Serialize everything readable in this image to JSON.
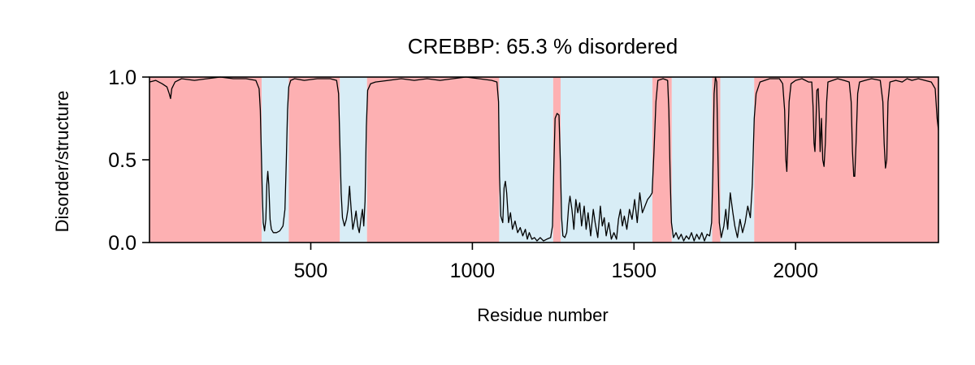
{
  "chart_data": {
    "type": "line",
    "title": "CREBBP: 65.3 % disordered",
    "xlabel": "Residue number",
    "ylabel": "Disorder/structure",
    "xlim": [
      1,
      2442
    ],
    "ylim": [
      0,
      1
    ],
    "xticks": [
      500,
      1000,
      1500,
      2000
    ],
    "xtick_labels": [
      "500",
      "1000",
      "1500",
      "2000"
    ],
    "yticks": [
      0,
      0.5,
      1
    ],
    "ytick_labels": [
      "0.0",
      "0.5",
      "1.0"
    ],
    "grid": false,
    "legend": "none",
    "colors": {
      "disordered": "#fdb0b2",
      "structured": "#d8edf6",
      "line": "#000000"
    },
    "regions": [
      {
        "start": 1,
        "end": 348,
        "state": "disordered"
      },
      {
        "start": 348,
        "end": 432,
        "state": "structured"
      },
      {
        "start": 432,
        "end": 590,
        "state": "disordered"
      },
      {
        "start": 590,
        "end": 674,
        "state": "structured"
      },
      {
        "start": 674,
        "end": 1083,
        "state": "disordered"
      },
      {
        "start": 1083,
        "end": 1250,
        "state": "structured"
      },
      {
        "start": 1250,
        "end": 1273,
        "state": "disordered"
      },
      {
        "start": 1273,
        "end": 1557,
        "state": "structured"
      },
      {
        "start": 1557,
        "end": 1617,
        "state": "disordered"
      },
      {
        "start": 1617,
        "end": 1742,
        "state": "structured"
      },
      {
        "start": 1742,
        "end": 1767,
        "state": "disordered"
      },
      {
        "start": 1767,
        "end": 1872,
        "state": "structured"
      },
      {
        "start": 1872,
        "end": 2442,
        "state": "disordered"
      }
    ],
    "series": [
      {
        "values": [
          [
            1,
            0.97
          ],
          [
            20,
            0.98
          ],
          [
            40,
            0.96
          ],
          [
            55,
            0.94
          ],
          [
            62,
            0.9
          ],
          [
            66,
            0.87
          ],
          [
            70,
            0.93
          ],
          [
            80,
            0.97
          ],
          [
            100,
            0.99
          ],
          [
            140,
            0.98
          ],
          [
            180,
            0.99
          ],
          [
            220,
            1.0
          ],
          [
            260,
            0.99
          ],
          [
            300,
            0.99
          ],
          [
            330,
            0.98
          ],
          [
            340,
            0.93
          ],
          [
            344,
            0.8
          ],
          [
            347,
            0.55
          ],
          [
            350,
            0.3
          ],
          [
            353,
            0.12
          ],
          [
            357,
            0.07
          ],
          [
            361,
            0.14
          ],
          [
            364,
            0.35
          ],
          [
            367,
            0.43
          ],
          [
            370,
            0.35
          ],
          [
            374,
            0.14
          ],
          [
            378,
            0.08
          ],
          [
            384,
            0.06
          ],
          [
            394,
            0.06
          ],
          [
            404,
            0.07
          ],
          [
            414,
            0.1
          ],
          [
            420,
            0.2
          ],
          [
            424,
            0.48
          ],
          [
            428,
            0.8
          ],
          [
            432,
            0.94
          ],
          [
            438,
            0.98
          ],
          [
            450,
            0.99
          ],
          [
            480,
            0.98
          ],
          [
            520,
            0.99
          ],
          [
            560,
            0.99
          ],
          [
            580,
            0.98
          ],
          [
            586,
            0.9
          ],
          [
            590,
            0.6
          ],
          [
            594,
            0.3
          ],
          [
            598,
            0.15
          ],
          [
            604,
            0.1
          ],
          [
            610,
            0.14
          ],
          [
            615,
            0.2
          ],
          [
            620,
            0.34
          ],
          [
            625,
            0.2
          ],
          [
            630,
            0.08
          ],
          [
            636,
            0.14
          ],
          [
            640,
            0.19
          ],
          [
            645,
            0.1
          ],
          [
            650,
            0.06
          ],
          [
            655,
            0.14
          ],
          [
            660,
            0.2
          ],
          [
            664,
            0.1
          ],
          [
            668,
            0.25
          ],
          [
            672,
            0.7
          ],
          [
            676,
            0.92
          ],
          [
            685,
            0.96
          ],
          [
            700,
            0.97
          ],
          [
            740,
            0.98
          ],
          [
            780,
            0.99
          ],
          [
            820,
            0.98
          ],
          [
            860,
            0.99
          ],
          [
            900,
            0.98
          ],
          [
            940,
            0.99
          ],
          [
            980,
            1.0
          ],
          [
            1020,
            0.99
          ],
          [
            1060,
            0.98
          ],
          [
            1076,
            0.97
          ],
          [
            1081,
            0.85
          ],
          [
            1084,
            0.4
          ],
          [
            1088,
            0.16
          ],
          [
            1094,
            0.12
          ],
          [
            1098,
            0.33
          ],
          [
            1102,
            0.37
          ],
          [
            1106,
            0.3
          ],
          [
            1112,
            0.12
          ],
          [
            1118,
            0.18
          ],
          [
            1124,
            0.08
          ],
          [
            1132,
            0.13
          ],
          [
            1140,
            0.06
          ],
          [
            1148,
            0.09
          ],
          [
            1156,
            0.04
          ],
          [
            1164,
            0.08
          ],
          [
            1170,
            0.02
          ],
          [
            1176,
            0.06
          ],
          [
            1184,
            0.02
          ],
          [
            1192,
            0.03
          ],
          [
            1200,
            0.01
          ],
          [
            1210,
            0.03
          ],
          [
            1220,
            0.01
          ],
          [
            1230,
            0.02
          ],
          [
            1242,
            0.03
          ],
          [
            1248,
            0.1
          ],
          [
            1252,
            0.45
          ],
          [
            1256,
            0.75
          ],
          [
            1262,
            0.78
          ],
          [
            1268,
            0.77
          ],
          [
            1272,
            0.5
          ],
          [
            1276,
            0.15
          ],
          [
            1280,
            0.04
          ],
          [
            1286,
            0.03
          ],
          [
            1292,
            0.06
          ],
          [
            1298,
            0.22
          ],
          [
            1302,
            0.28
          ],
          [
            1308,
            0.2
          ],
          [
            1314,
            0.08
          ],
          [
            1320,
            0.26
          ],
          [
            1326,
            0.18
          ],
          [
            1332,
            0.24
          ],
          [
            1338,
            0.1
          ],
          [
            1346,
            0.22
          ],
          [
            1352,
            0.08
          ],
          [
            1358,
            0.18
          ],
          [
            1366,
            0.04
          ],
          [
            1374,
            0.2
          ],
          [
            1380,
            0.12
          ],
          [
            1388,
            0.03
          ],
          [
            1396,
            0.22
          ],
          [
            1402,
            0.1
          ],
          [
            1408,
            0.15
          ],
          [
            1414,
            0.04
          ],
          [
            1422,
            0.12
          ],
          [
            1430,
            0.02
          ],
          [
            1438,
            0.06
          ],
          [
            1446,
            0.02
          ],
          [
            1452,
            0.14
          ],
          [
            1458,
            0.2
          ],
          [
            1464,
            0.1
          ],
          [
            1470,
            0.16
          ],
          [
            1478,
            0.08
          ],
          [
            1486,
            0.2
          ],
          [
            1494,
            0.14
          ],
          [
            1502,
            0.26
          ],
          [
            1510,
            0.12
          ],
          [
            1518,
            0.3
          ],
          [
            1526,
            0.18
          ],
          [
            1534,
            0.22
          ],
          [
            1542,
            0.26
          ],
          [
            1550,
            0.28
          ],
          [
            1556,
            0.3
          ],
          [
            1562,
            0.55
          ],
          [
            1568,
            0.85
          ],
          [
            1574,
            0.98
          ],
          [
            1590,
            0.99
          ],
          [
            1604,
            0.98
          ],
          [
            1608,
            0.8
          ],
          [
            1612,
            0.4
          ],
          [
            1616,
            0.12
          ],
          [
            1622,
            0.03
          ],
          [
            1630,
            0.06
          ],
          [
            1638,
            0.02
          ],
          [
            1646,
            0.05
          ],
          [
            1654,
            0.01
          ],
          [
            1662,
            0.04
          ],
          [
            1670,
            0.02
          ],
          [
            1678,
            0.06
          ],
          [
            1686,
            0.01
          ],
          [
            1694,
            0.05
          ],
          [
            1702,
            0.02
          ],
          [
            1710,
            0.06
          ],
          [
            1718,
            0.01
          ],
          [
            1726,
            0.05
          ],
          [
            1734,
            0.04
          ],
          [
            1740,
            0.12
          ],
          [
            1744,
            0.4
          ],
          [
            1748,
            0.9
          ],
          [
            1752,
            1.0
          ],
          [
            1756,
            0.97
          ],
          [
            1760,
            0.5
          ],
          [
            1764,
            0.12
          ],
          [
            1770,
            0.03
          ],
          [
            1778,
            0.1
          ],
          [
            1784,
            0.2
          ],
          [
            1790,
            0.08
          ],
          [
            1798,
            0.3
          ],
          [
            1806,
            0.18
          ],
          [
            1812,
            0.1
          ],
          [
            1820,
            0.03
          ],
          [
            1828,
            0.14
          ],
          [
            1836,
            0.06
          ],
          [
            1844,
            0.12
          ],
          [
            1852,
            0.22
          ],
          [
            1860,
            0.15
          ],
          [
            1866,
            0.35
          ],
          [
            1872,
            0.75
          ],
          [
            1878,
            0.9
          ],
          [
            1890,
            0.97
          ],
          [
            1920,
            0.99
          ],
          [
            1950,
            0.99
          ],
          [
            1960,
            0.96
          ],
          [
            1966,
            0.8
          ],
          [
            1970,
            0.5
          ],
          [
            1973,
            0.43
          ],
          [
            1976,
            0.6
          ],
          [
            1980,
            0.85
          ],
          [
            1986,
            0.96
          ],
          [
            2000,
            0.98
          ],
          [
            2020,
            0.99
          ],
          [
            2040,
            0.97
          ],
          [
            2050,
            0.97
          ],
          [
            2054,
            0.82
          ],
          [
            2057,
            0.6
          ],
          [
            2060,
            0.55
          ],
          [
            2063,
            0.72
          ],
          [
            2066,
            0.92
          ],
          [
            2070,
            0.93
          ],
          [
            2073,
            0.78
          ],
          [
            2076,
            0.55
          ],
          [
            2080,
            0.75
          ],
          [
            2084,
            0.5
          ],
          [
            2088,
            0.46
          ],
          [
            2092,
            0.6
          ],
          [
            2096,
            0.85
          ],
          [
            2100,
            0.97
          ],
          [
            2130,
            0.99
          ],
          [
            2150,
            0.98
          ],
          [
            2166,
            0.97
          ],
          [
            2172,
            0.85
          ],
          [
            2176,
            0.55
          ],
          [
            2180,
            0.4
          ],
          [
            2183,
            0.4
          ],
          [
            2187,
            0.6
          ],
          [
            2192,
            0.9
          ],
          [
            2198,
            0.97
          ],
          [
            2215,
            0.98
          ],
          [
            2235,
            0.99
          ],
          [
            2262,
            0.98
          ],
          [
            2270,
            0.85
          ],
          [
            2274,
            0.6
          ],
          [
            2278,
            0.45
          ],
          [
            2282,
            0.5
          ],
          [
            2286,
            0.85
          ],
          [
            2292,
            0.97
          ],
          [
            2310,
            0.98
          ],
          [
            2330,
            0.97
          ],
          [
            2345,
            0.99
          ],
          [
            2360,
            0.98
          ],
          [
            2380,
            0.99
          ],
          [
            2400,
            0.98
          ],
          [
            2420,
            0.97
          ],
          [
            2432,
            0.93
          ],
          [
            2438,
            0.75
          ],
          [
            2442,
            0.68
          ]
        ]
      }
    ]
  }
}
